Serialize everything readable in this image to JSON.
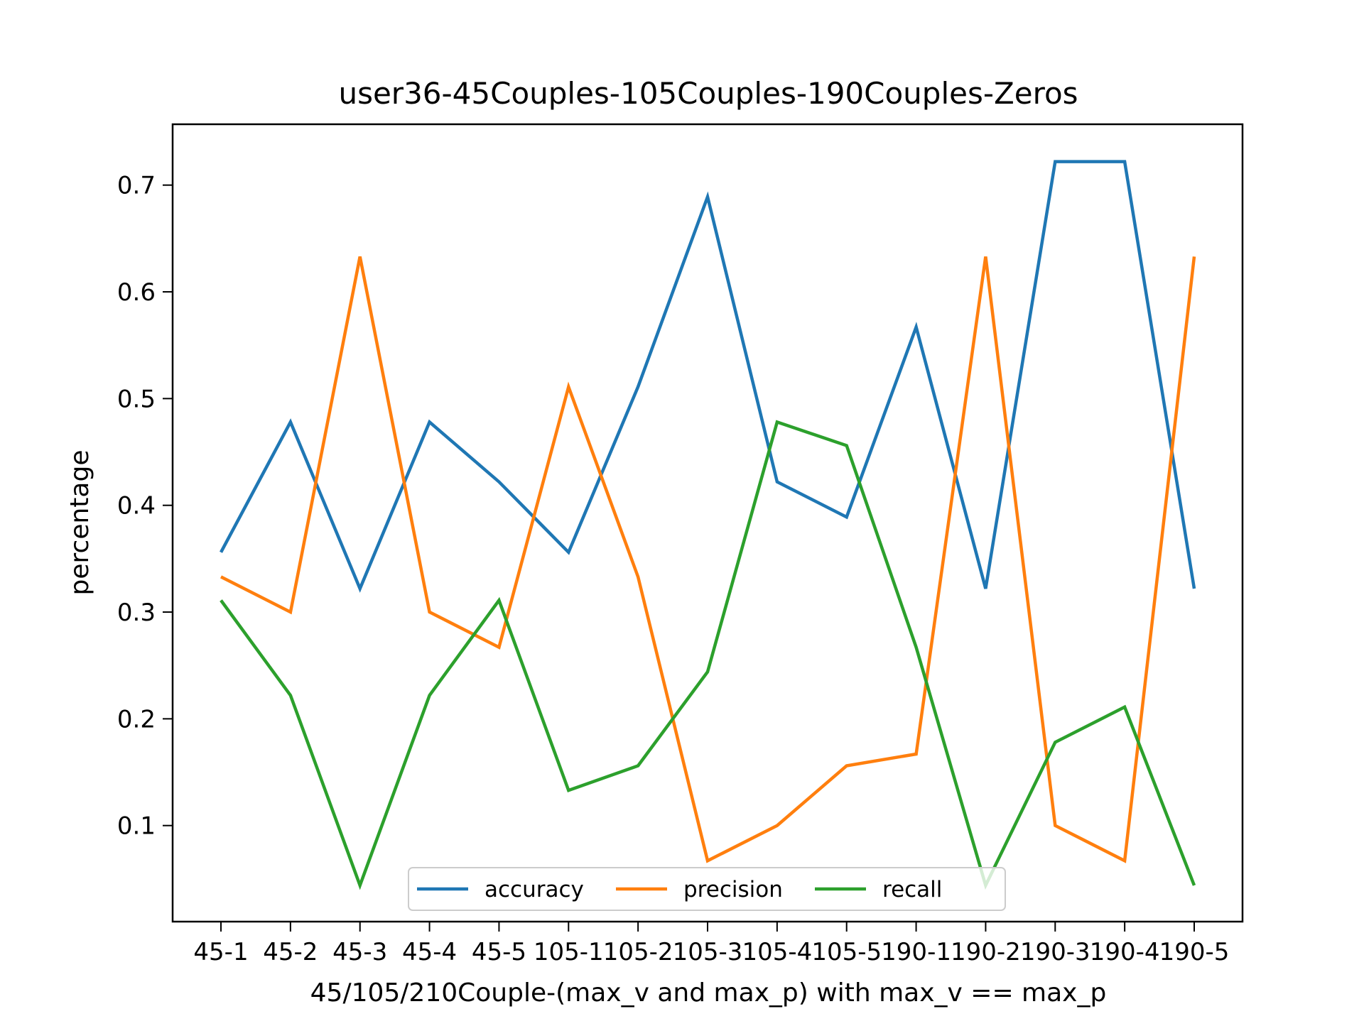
{
  "chart_data": {
    "type": "line",
    "title": "user36-45Couples-105Couples-190Couples-Zeros",
    "xlabel": "45/105/210Couple-(max_v and max_p) with max_v == max_p",
    "ylabel": "percentage",
    "categories": [
      "45-1",
      "45-2",
      "45-3",
      "45-4",
      "45-5",
      "105-1",
      "105-2",
      "105-3",
      "105-4",
      "105-5",
      "190-1",
      "190-2",
      "190-3",
      "190-4",
      "190-5"
    ],
    "yticks": [
      "0.1",
      "0.2",
      "0.3",
      "0.4",
      "0.5",
      "0.6",
      "0.7"
    ],
    "ylim": [
      0.01,
      0.757
    ],
    "grid": false,
    "legend_position": "bottom-center",
    "series": [
      {
        "name": "accuracy",
        "color": "#1f77b4",
        "values": [
          0.356,
          0.478,
          0.322,
          0.478,
          0.422,
          0.356,
          0.511,
          0.689,
          0.422,
          0.389,
          0.567,
          0.322,
          0.722,
          0.722,
          0.322
        ]
      },
      {
        "name": "precision",
        "color": "#ff7f0e",
        "values": [
          0.333,
          0.3,
          0.633,
          0.3,
          0.267,
          0.511,
          0.333,
          0.067,
          0.1,
          0.156,
          0.167,
          0.633,
          0.1,
          0.067,
          0.633
        ]
      },
      {
        "name": "recall",
        "color": "#2ca02c",
        "values": [
          0.311,
          0.222,
          0.044,
          0.222,
          0.311,
          0.133,
          0.156,
          0.244,
          0.478,
          0.456,
          0.267,
          0.044,
          0.178,
          0.211,
          0.044
        ]
      }
    ]
  }
}
